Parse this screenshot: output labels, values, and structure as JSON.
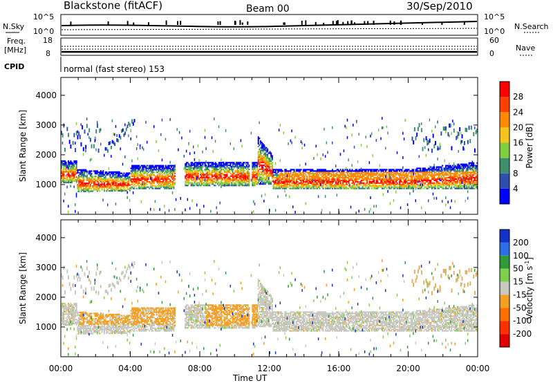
{
  "header": {
    "title": "Blackstone (fitACF)",
    "beam": "Beam 00",
    "date": "30/Sep/2010"
  },
  "top_panels": {
    "nsky_label": "N.Sky",
    "nsky_ticks": [
      "10^5",
      "10^0"
    ],
    "nsearch_label": "N.Search",
    "freq_label_1": "Freq.",
    "freq_label_2": "[MHz]",
    "freq_ticks_left": [
      "18",
      "8"
    ],
    "nave_label": "Nave",
    "nave_ticks_right": [
      "60",
      "0"
    ],
    "cpid_label": "CPID",
    "cpid_text": "normal (fast stereo) 153"
  },
  "chart_data": [
    {
      "type": "heatmap",
      "name": "power",
      "xlabel": "Time UT",
      "ylabel": "Slant Range [km]",
      "xlim": [
        0,
        24
      ],
      "ylim": [
        0,
        4600
      ],
      "y_ticks": [
        1000,
        2000,
        3000,
        4000
      ],
      "x_tick_labels": [
        "00:00",
        "04:00",
        "08:00",
        "12:00",
        "16:00",
        "20:00",
        "00:00"
      ],
      "colorbar_label": "Power [dB]",
      "colorbar_ticks": [
        "4",
        "8",
        "12",
        "16",
        "20",
        "24",
        "28"
      ],
      "colors": [
        "#0000ff",
        "#2d4fb0",
        "#3f8f6f",
        "#7fcf3f",
        "#f5c51d",
        "#ff8a00",
        "#ff4000",
        "#ff0000"
      ]
    },
    {
      "type": "heatmap",
      "name": "velocity",
      "xlabel": "Time UT",
      "ylabel": "Slant Range [km]",
      "xlim": [
        0,
        24
      ],
      "ylim": [
        0,
        4600
      ],
      "y_ticks": [
        1000,
        2000,
        3000,
        4000
      ],
      "x_tick_labels": [
        "00:00",
        "04:00",
        "08:00",
        "12:00",
        "16:00",
        "20:00",
        "00:00"
      ],
      "colorbar_label": "Velocity [m s",
      "colorbar_label_sup": "-1",
      "colorbar_ticks": [
        "200",
        "100",
        "50",
        "15",
        "-15",
        "-50",
        "-100",
        "-200"
      ],
      "colors": [
        "#1432c8",
        "#2d6ee6",
        "#2e9b38",
        "#7fd04a",
        "#c8c8c0",
        "#f5a020",
        "#ff7000",
        "#ff3000",
        "#e00000"
      ]
    }
  ],
  "colors": {
    "ground_scatter": "#c8c8c0"
  }
}
